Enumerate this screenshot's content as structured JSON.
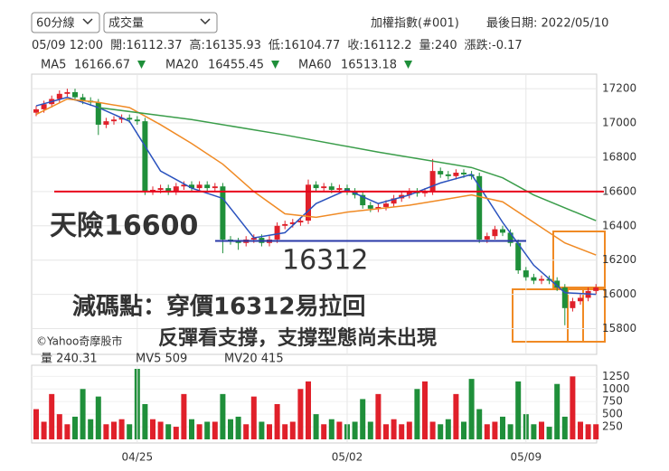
{
  "header": {
    "selects": [
      "60分線",
      "成交量"
    ],
    "index_name": "加權指數(#001)",
    "last_date": "最後日期: 2022/05/10",
    "info": [
      "05/09 12:00",
      "開:16112.37",
      "高:16135.93",
      "低:16104.77",
      "收:16112.2",
      "量:240",
      "漲跌:-0.17"
    ]
  },
  "chart_data": [
    {
      "type": "candlestick",
      "ylim": [
        15650,
        17285
      ],
      "yticks": [
        15800,
        16000,
        16200,
        16400,
        16600,
        16800,
        17000,
        17200
      ],
      "grid": true,
      "up_color": "#e0202a",
      "down_color": "#1f8f3a",
      "open": [
        17060,
        17080,
        17110,
        17140,
        17170,
        17180,
        17150,
        17130,
        17120,
        16990,
        17010,
        17020,
        17030,
        17020,
        17010,
        16600,
        16610,
        16620,
        16600,
        16630,
        16640,
        16620,
        16640,
        16620,
        16630,
        16320,
        16310,
        16300,
        16320,
        16330,
        16300,
        16320,
        16400,
        16410,
        16420,
        16430,
        16640,
        16620,
        16630,
        16610,
        16620,
        16600,
        16580,
        16520,
        16500,
        16510,
        16530,
        16560,
        16580,
        16600,
        16590,
        16600,
        16720,
        16700,
        16690,
        16710,
        16700,
        16690,
        16320,
        16340,
        16380,
        16360,
        16300,
        16140,
        16100,
        16080,
        16090,
        16080,
        16040,
        15920,
        15960,
        15980,
        16020
      ],
      "high": [
        17100,
        17130,
        17160,
        17190,
        17200,
        17200,
        17170,
        17150,
        17140,
        17030,
        17040,
        17050,
        17050,
        17040,
        17030,
        16630,
        16640,
        16640,
        16650,
        16660,
        16660,
        16660,
        16660,
        16650,
        16650,
        16340,
        16330,
        16340,
        16350,
        16350,
        16340,
        16420,
        16430,
        16440,
        16450,
        16670,
        16660,
        16650,
        16650,
        16640,
        16640,
        16620,
        16600,
        16540,
        16530,
        16550,
        16580,
        16600,
        16620,
        16620,
        16620,
        16790,
        16740,
        16720,
        16730,
        16730,
        16720,
        16710,
        16360,
        16400,
        16400,
        16380,
        16320,
        16160,
        16120,
        16110,
        16110,
        16100,
        16060,
        15980,
        16000,
        16040,
        16060
      ],
      "low": [
        17040,
        17060,
        17090,
        17120,
        17150,
        17130,
        17110,
        17100,
        16930,
        16970,
        16990,
        17000,
        17000,
        16990,
        16580,
        16580,
        16590,
        16580,
        16580,
        16610,
        16600,
        16600,
        16600,
        16600,
        16240,
        16290,
        16260,
        16280,
        16300,
        16280,
        16280,
        16300,
        16380,
        16390,
        16400,
        16410,
        16600,
        16600,
        16590,
        16590,
        16580,
        16560,
        16500,
        16480,
        16480,
        16490,
        16510,
        16540,
        16560,
        16570,
        16570,
        16580,
        16680,
        16670,
        16670,
        16680,
        16670,
        16300,
        16300,
        16320,
        16340,
        16280,
        16120,
        16080,
        16060,
        16060,
        16060,
        16020,
        15820,
        15900,
        15940,
        15960,
        16000
      ],
      "close": [
        17080,
        17110,
        17140,
        17170,
        17180,
        17150,
        17130,
        17120,
        16990,
        17010,
        17020,
        17030,
        17020,
        17010,
        16600,
        16610,
        16620,
        16600,
        16630,
        16640,
        16620,
        16640,
        16620,
        16630,
        16320,
        16310,
        16300,
        16320,
        16330,
        16300,
        16320,
        16400,
        16410,
        16420,
        16430,
        16640,
        16620,
        16630,
        16610,
        16620,
        16600,
        16580,
        16520,
        16500,
        16510,
        16530,
        16560,
        16580,
        16600,
        16590,
        16600,
        16720,
        16700,
        16690,
        16710,
        16700,
        16690,
        16320,
        16340,
        16380,
        16360,
        16300,
        16140,
        16100,
        16080,
        16090,
        16080,
        16040,
        15920,
        15960,
        15980,
        16020,
        16040
      ],
      "series": [
        {
          "name": "MA5",
          "legend_value": "16166.67",
          "color": "#2a52be",
          "x": [
            0,
            4,
            8,
            12,
            16,
            20,
            24,
            28,
            32,
            36,
            40,
            44,
            48,
            52,
            56,
            60,
            64,
            68,
            72
          ],
          "values": [
            17100,
            17150,
            17090,
            17010,
            16720,
            16620,
            16560,
            16330,
            16360,
            16530,
            16610,
            16530,
            16580,
            16650,
            16700,
            16420,
            16170,
            16010,
            16000
          ]
        },
        {
          "name": "MA20",
          "legend_value": "16455.45",
          "color": "#f08a24",
          "x": [
            0,
            4,
            8,
            12,
            16,
            20,
            24,
            28,
            32,
            36,
            40,
            44,
            48,
            52,
            56,
            60,
            64,
            68,
            72
          ],
          "values": [
            17050,
            17140,
            17120,
            17090,
            16990,
            16880,
            16760,
            16600,
            16470,
            16450,
            16480,
            16500,
            16520,
            16550,
            16580,
            16540,
            16420,
            16300,
            16230
          ]
        },
        {
          "name": "MA60",
          "legend_value": "16513.18",
          "color": "#3a9d4a",
          "x": [
            8,
            20,
            32,
            44,
            56,
            60,
            64,
            72
          ],
          "values": [
            17090,
            17020,
            16930,
            16830,
            16740,
            16680,
            16580,
            16430
          ]
        }
      ],
      "annotations": [
        {
          "text": "天險16600",
          "value": 16600,
          "color": "#e8001c"
        },
        {
          "text": "16312",
          "value": 16312,
          "color": "#2a3aa8"
        },
        {
          "text": "減碼點：穿價16312易拉回",
          "color": "#f08a24"
        },
        {
          "text": "反彈看支撐，支撐型態尚未出現",
          "color": "#e8001c"
        }
      ],
      "watermark": "©Yahoo奇摩股市"
    },
    {
      "type": "volume",
      "legend": [
        {
          "text": "量 240.31",
          "color": "#222"
        },
        {
          "text": "MV5 509",
          "color": "#2a52be"
        },
        {
          "text": "MV20 415",
          "color": "#f08a24"
        }
      ],
      "ylim": [
        0,
        1400
      ],
      "yticks": [
        250,
        500,
        750,
        1000,
        1250
      ],
      "categories": [
        null,
        null,
        null,
        null,
        null,
        null,
        null,
        null,
        null,
        null,
        null,
        null,
        null,
        "04/25",
        null,
        null,
        null,
        null,
        null,
        null,
        null,
        null,
        null,
        null,
        null,
        null,
        null,
        null,
        null,
        null,
        null,
        null,
        null,
        null,
        null,
        null,
        null,
        null,
        null,
        null,
        "05/02",
        null,
        null,
        null,
        null,
        null,
        null,
        null,
        null,
        null,
        null,
        null,
        null,
        null,
        null,
        null,
        null,
        null,
        null,
        null,
        null,
        null,
        null,
        "05/09",
        null,
        null,
        null,
        null,
        null,
        null,
        null,
        null,
        null
      ],
      "values": [
        600,
        350,
        900,
        500,
        300,
        450,
        1000,
        400,
        850,
        300,
        350,
        400,
        300,
        1400,
        700,
        400,
        350,
        300,
        250,
        900,
        400,
        300,
        350,
        350,
        900,
        400,
        450,
        300,
        850,
        350,
        300,
        700,
        300,
        350,
        1000,
        1150,
        500,
        300,
        400,
        350,
        300,
        350,
        800,
        350,
        900,
        300,
        400,
        300,
        350,
        1000,
        1150,
        350,
        300,
        400,
        900,
        350,
        1200,
        600,
        300,
        350,
        450,
        300,
        1150,
        500,
        300,
        350,
        250,
        1100,
        450,
        1250,
        350,
        300,
        300
      ]
    }
  ]
}
